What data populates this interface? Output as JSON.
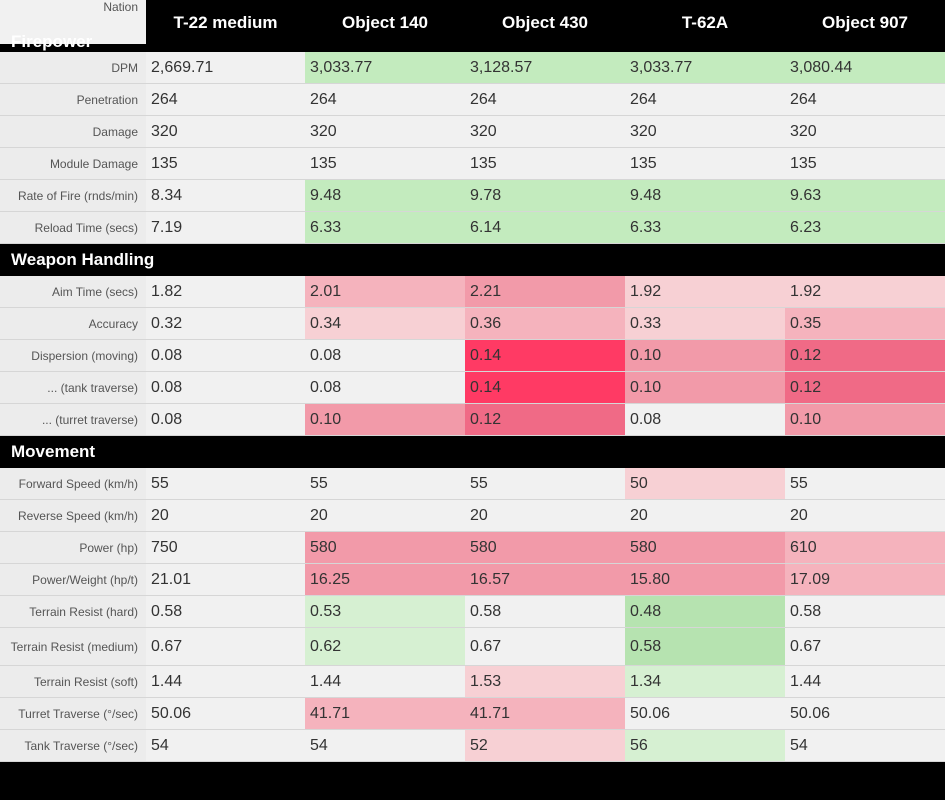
{
  "header": {
    "nation_label": "Nation",
    "vehicles": [
      "T-22 medium",
      "Object 140",
      "Object 430",
      "T-62A",
      "Object 907"
    ]
  },
  "colors": {
    "neutral": "#f1f1f1",
    "green_light": "#d6f0d2",
    "green": "#c3ebbe",
    "green_mid": "#b6e3b0",
    "red_pale": "#f7d0d4",
    "red_light": "#f5b3bd",
    "red_mid": "#f29aa9",
    "red": "#f06a86",
    "red_strong": "#ff3a64"
  },
  "sections": [
    {
      "title": "Firepower",
      "rows": [
        {
          "label": "DPM",
          "values": [
            "2,669.71",
            "3,033.77",
            "3,128.57",
            "3,033.77",
            "3,080.44"
          ],
          "shades": [
            "neutral",
            "green",
            "green",
            "green",
            "green"
          ]
        },
        {
          "label": "Penetration",
          "values": [
            "264",
            "264",
            "264",
            "264",
            "264"
          ],
          "shades": [
            "neutral",
            "neutral",
            "neutral",
            "neutral",
            "neutral"
          ]
        },
        {
          "label": "Damage",
          "values": [
            "320",
            "320",
            "320",
            "320",
            "320"
          ],
          "shades": [
            "neutral",
            "neutral",
            "neutral",
            "neutral",
            "neutral"
          ]
        },
        {
          "label": "Module Damage",
          "values": [
            "135",
            "135",
            "135",
            "135",
            "135"
          ],
          "shades": [
            "neutral",
            "neutral",
            "neutral",
            "neutral",
            "neutral"
          ]
        },
        {
          "label": "Rate of Fire (rnds/min)",
          "values": [
            "8.34",
            "9.48",
            "9.78",
            "9.48",
            "9.63"
          ],
          "shades": [
            "neutral",
            "green",
            "green",
            "green",
            "green"
          ]
        },
        {
          "label": "Reload Time (secs)",
          "values": [
            "7.19",
            "6.33",
            "6.14",
            "6.33",
            "6.23"
          ],
          "shades": [
            "neutral",
            "green",
            "green",
            "green",
            "green"
          ]
        }
      ]
    },
    {
      "title": "Weapon Handling",
      "rows": [
        {
          "label": "Aim Time (secs)",
          "values": [
            "1.82",
            "2.01",
            "2.21",
            "1.92",
            "1.92"
          ],
          "shades": [
            "neutral",
            "red_light",
            "red_mid",
            "red_pale",
            "red_pale"
          ]
        },
        {
          "label": "Accuracy",
          "values": [
            "0.32",
            "0.34",
            "0.36",
            "0.33",
            "0.35"
          ],
          "shades": [
            "neutral",
            "red_pale",
            "red_light",
            "red_pale",
            "red_light"
          ]
        },
        {
          "label": "Dispersion (moving)",
          "values": [
            "0.08",
            "0.08",
            "0.14",
            "0.10",
            "0.12"
          ],
          "shades": [
            "neutral",
            "neutral",
            "red_strong",
            "red_mid",
            "red"
          ]
        },
        {
          "label": "... (tank traverse)",
          "values": [
            "0.08",
            "0.08",
            "0.14",
            "0.10",
            "0.12"
          ],
          "shades": [
            "neutral",
            "neutral",
            "red_strong",
            "red_mid",
            "red"
          ]
        },
        {
          "label": "... (turret traverse)",
          "values": [
            "0.08",
            "0.10",
            "0.12",
            "0.08",
            "0.10"
          ],
          "shades": [
            "neutral",
            "red_mid",
            "red",
            "neutral",
            "red_mid"
          ]
        }
      ]
    },
    {
      "title": "Movement",
      "rows": [
        {
          "label": "Forward Speed (km/h)",
          "values": [
            "55",
            "55",
            "55",
            "50",
            "55"
          ],
          "shades": [
            "neutral",
            "neutral",
            "neutral",
            "red_pale",
            "neutral"
          ]
        },
        {
          "label": "Reverse Speed (km/h)",
          "values": [
            "20",
            "20",
            "20",
            "20",
            "20"
          ],
          "shades": [
            "neutral",
            "neutral",
            "neutral",
            "neutral",
            "neutral"
          ]
        },
        {
          "label": "Power (hp)",
          "values": [
            "750",
            "580",
            "580",
            "580",
            "610"
          ],
          "shades": [
            "neutral",
            "red_mid",
            "red_mid",
            "red_mid",
            "red_light"
          ]
        },
        {
          "label": "Power/Weight (hp/t)",
          "values": [
            "21.01",
            "16.25",
            "16.57",
            "15.80",
            "17.09"
          ],
          "shades": [
            "neutral",
            "red_mid",
            "red_mid",
            "red_mid",
            "red_light"
          ]
        },
        {
          "label": "Terrain Resist (hard)",
          "values": [
            "0.58",
            "0.53",
            "0.58",
            "0.48",
            "0.58"
          ],
          "shades": [
            "neutral",
            "green_light",
            "neutral",
            "green_mid",
            "neutral"
          ]
        },
        {
          "label": "Terrain Resist (medium)",
          "values": [
            "0.67",
            "0.62",
            "0.67",
            "0.58",
            "0.67"
          ],
          "shades": [
            "neutral",
            "green_light",
            "neutral",
            "green_mid",
            "neutral"
          ],
          "tall": true
        },
        {
          "label": "Terrain Resist (soft)",
          "values": [
            "1.44",
            "1.44",
            "1.53",
            "1.34",
            "1.44"
          ],
          "shades": [
            "neutral",
            "neutral",
            "red_pale",
            "green_light",
            "neutral"
          ]
        },
        {
          "label": "Turret Traverse (°/sec)",
          "values": [
            "50.06",
            "41.71",
            "41.71",
            "50.06",
            "50.06"
          ],
          "shades": [
            "neutral",
            "red_light",
            "red_light",
            "neutral",
            "neutral"
          ]
        },
        {
          "label": "Tank Traverse (°/sec)",
          "values": [
            "54",
            "54",
            "52",
            "56",
            "54"
          ],
          "shades": [
            "neutral",
            "neutral",
            "red_pale",
            "green_light",
            "neutral"
          ]
        }
      ]
    }
  ]
}
